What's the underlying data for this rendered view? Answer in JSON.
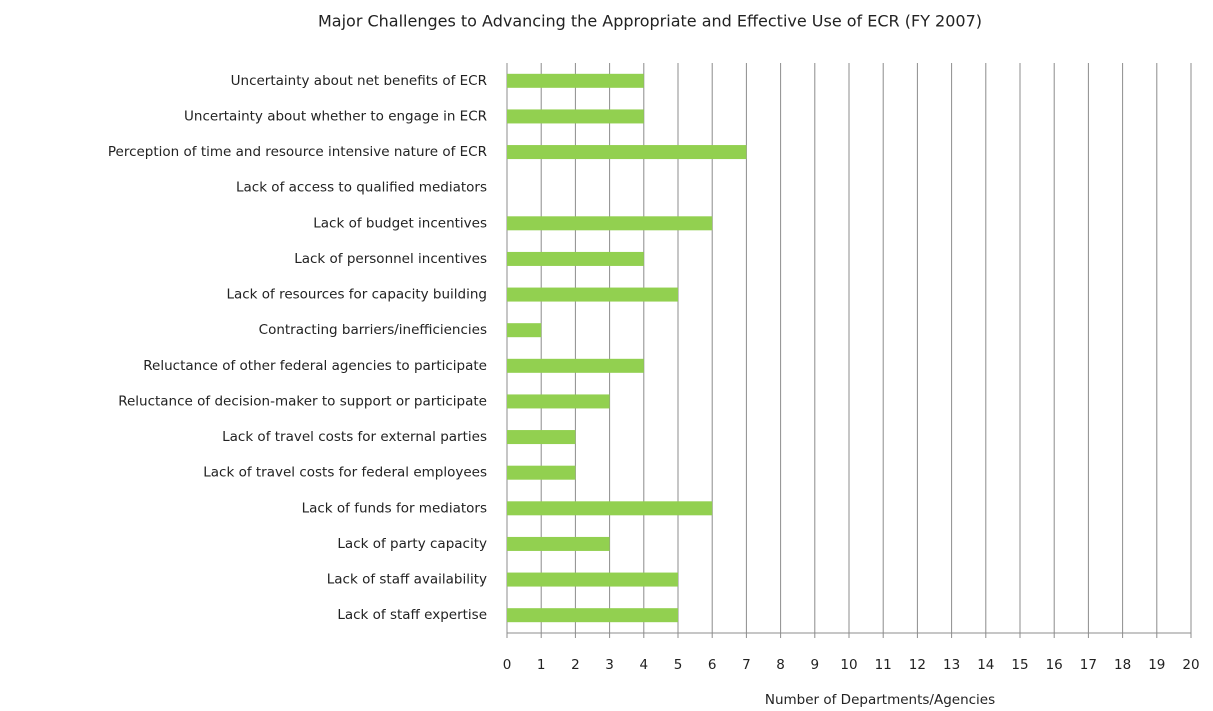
{
  "chart_data": {
    "type": "bar",
    "orientation": "horizontal",
    "title": "Major Challenges to Advancing the Appropriate and Effective Use of ECR (FY 2007)",
    "x_label": "Number of Departments/Agencies",
    "categories": [
      "Uncertainty about net benefits of ECR",
      "Uncertainty about whether to engage in ECR",
      "Perception of time and resource intensive nature of ECR",
      "Lack of access to qualified mediators",
      "Lack of budget incentives",
      "Lack of personnel incentives",
      "Lack of resources for capacity building",
      "Contracting barriers/inefficiencies",
      "Reluctance of other federal agencies to participate",
      "Reluctance of decision-maker to support or participate",
      "Lack of travel costs for external parties",
      "Lack of travel costs for federal employees",
      "Lack of funds for mediators",
      "Lack of party capacity",
      "Lack of staff availability",
      "Lack of staff expertise"
    ],
    "values": [
      4,
      4,
      7,
      0,
      6,
      4,
      5,
      1,
      4,
      3,
      2,
      2,
      6,
      3,
      5,
      5
    ],
    "color": "#92d050",
    "xlim": [
      0,
      20
    ],
    "xticks": [
      0,
      1,
      2,
      3,
      4,
      5,
      6,
      7,
      8,
      9,
      10,
      11,
      12,
      13,
      14,
      15,
      16,
      17,
      18,
      19,
      20
    ],
    "grid": true
  }
}
